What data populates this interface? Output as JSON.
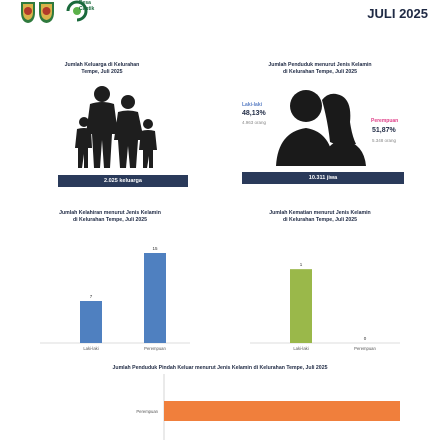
{
  "header": {
    "logo_text_line1": "Desa",
    "logo_text_line2": "Cantik",
    "period": "JULI 2025"
  },
  "panels": {
    "families": {
      "title_line1": "Jumlah Keluarga di Kelurahan",
      "title_line2": "Tempe, Juli 2025",
      "band": "2.025 keluarga",
      "icon": "family-icon"
    },
    "population": {
      "title_line1": "Jumlah Penduduk menurut Jenis Kelamin",
      "title_line2": "di Kelurahan Tempe, Juli 2025",
      "band": "10.311 jiwa",
      "male_label": "Laki-laki",
      "male_pct": "48,13%",
      "male_count": "4.963 orang",
      "female_label": "Perempuan",
      "female_pct": "51,87%",
      "female_count": "5.348 orang",
      "icon": "couple-silhouette-icon",
      "colors": {
        "male": "#5b7fc4",
        "female": "#e0418a"
      }
    }
  },
  "chart_data": [
    {
      "type": "bar",
      "title": "Jumlah Kelahiran menurut Jenis Kelamin di Kelurahan Tempe, Juli 2025",
      "title_line1": "Jumlah Kelahiran menurut Jenis Kelamin",
      "title_line2": "di Kelurahan Tempe, Juli 2025",
      "categories": [
        "Laki-laki",
        "Perempuan"
      ],
      "values": [
        7,
        15
      ],
      "ylim": [
        0,
        16
      ],
      "color": "#4f80c0",
      "grid": false
    },
    {
      "type": "bar",
      "title": "Jumlah Kematian menurut Jenis Kelamin di Kelurahan Tempe, Juli 2025",
      "title_line1": "Jumlah Kematian menurut Jenis Kelamin",
      "title_line2": "di Kelurahan Tempe, Juli 2025",
      "categories": [
        "Laki-laki",
        "Perempuan"
      ],
      "values": [
        1,
        0
      ],
      "ylim": [
        0,
        1.3
      ],
      "color": "#9ab84a",
      "grid": false
    },
    {
      "type": "bar",
      "orientation": "horizontal",
      "title": "Jumlah Penduduk Pindah Keluar menurut Jenis Kelamin di Kelurahan Tempe, Juli 2025",
      "categories": [
        "",
        "Perempuan"
      ],
      "values": [
        0,
        2
      ],
      "xlim": [
        0,
        2.2
      ],
      "color": "#f07f3c",
      "grid": false
    }
  ]
}
